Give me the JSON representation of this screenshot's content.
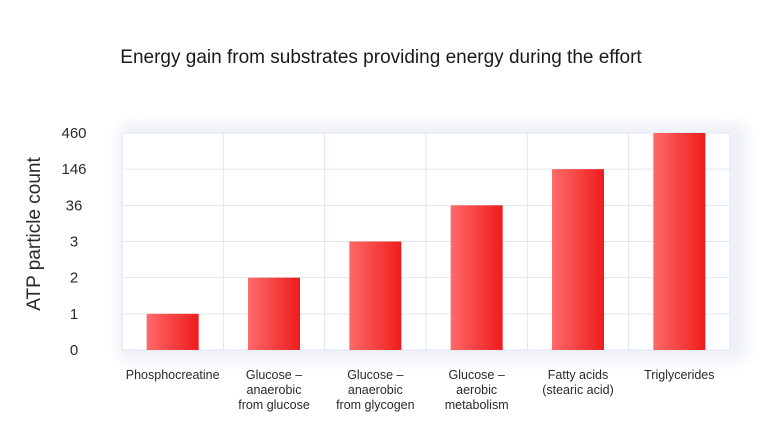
{
  "chart_data": {
    "type": "bar",
    "title": "Energy gain from substrates providing energy during the effort",
    "xlabel": "",
    "ylabel": "ATP particle count",
    "y_axis_scale": "categorical (unevenly spaced ticks)",
    "y_ticks": [
      "0",
      "1",
      "2",
      "3",
      "36",
      "146",
      "460"
    ],
    "categories": [
      [
        "Phosphocreatine"
      ],
      [
        "Glucose –",
        "anaerobic",
        "from glucose"
      ],
      [
        "Glucose –",
        "anaerobic",
        "from glycogen"
      ],
      [
        "Glucose –",
        "aerobic",
        "metabolism"
      ],
      [
        "Fatty acids",
        "(stearic acid)"
      ],
      [
        "Triglycerides"
      ]
    ],
    "values": [
      1,
      2,
      3,
      36,
      146,
      460
    ],
    "grid": true,
    "legend": "none",
    "colors": {
      "bar_light": "#ff6a6a",
      "bar_dark": "#ee1c1c",
      "grid": "#dfe6f2",
      "plot_background": "#ffffff"
    }
  }
}
